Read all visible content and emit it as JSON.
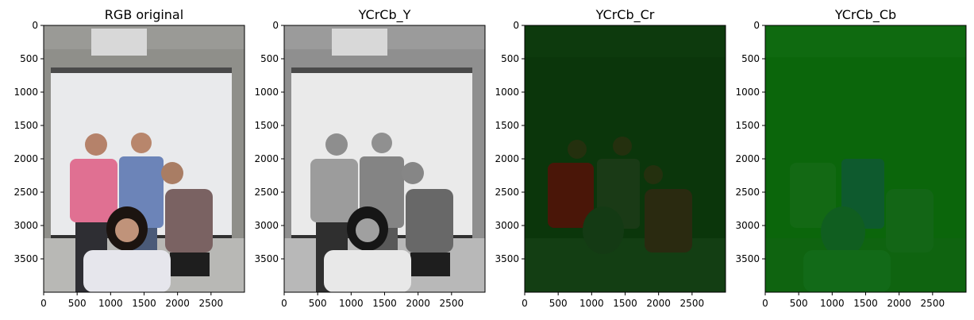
{
  "chart_data": [
    {
      "type": "image",
      "title": "RGB original",
      "channel": "rgb",
      "xlim": [
        0,
        3000
      ],
      "ylim": [
        4000,
        0
      ],
      "xticks": [
        0,
        500,
        1000,
        1500,
        2000,
        2500
      ],
      "yticks": [
        0,
        500,
        1000,
        1500,
        2000,
        2500,
        3000,
        3500
      ],
      "image_description": "Group photo of four people standing in front of a white projection screen, colour"
    },
    {
      "type": "image",
      "title": "YCrCb_Y",
      "channel": "Y",
      "xlim": [
        0,
        3000
      ],
      "ylim": [
        4000,
        0
      ],
      "xticks": [
        0,
        500,
        1000,
        1500,
        2000,
        2500
      ],
      "yticks": [
        0,
        500,
        1000,
        1500,
        2000,
        2500,
        3000,
        3500
      ],
      "image_description": "Luma channel rendered in grayscale"
    },
    {
      "type": "image",
      "title": "YCrCb_Cr",
      "channel": "Cr",
      "xlim": [
        0,
        3000
      ],
      "ylim": [
        4000,
        0
      ],
      "xticks": [
        0,
        500,
        1000,
        1500,
        2000,
        2500
      ],
      "yticks": [
        0,
        500,
        1000,
        1500,
        2000,
        2500,
        3000,
        3500
      ],
      "image_description": "Cr channel rendered with dark green/red tint"
    },
    {
      "type": "image",
      "title": "YCrCb_Cb",
      "channel": "Cb",
      "xlim": [
        0,
        3000
      ],
      "ylim": [
        4000,
        0
      ],
      "xticks": [
        0,
        500,
        1000,
        1500,
        2000,
        2500
      ],
      "yticks": [
        0,
        500,
        1000,
        1500,
        2000,
        2500,
        3000,
        3500
      ],
      "image_description": "Cb channel rendered with green/blue tint"
    }
  ],
  "colors": {
    "background": "#ffffff",
    "axis": "#000000",
    "cr_background": "#0a3a0a",
    "cb_background": "#0a6a0a"
  }
}
